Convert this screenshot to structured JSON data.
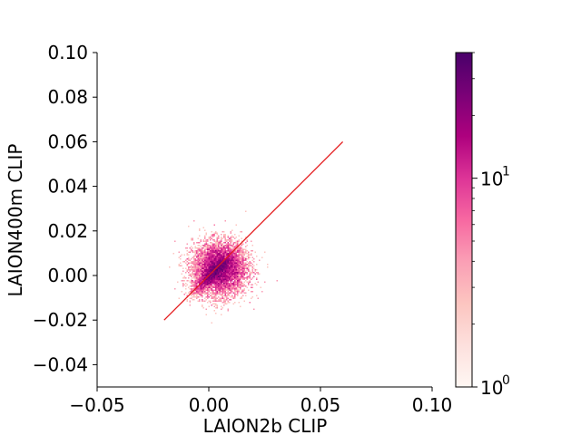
{
  "chart_data": {
    "type": "heatmap",
    "title": "",
    "xlabel": "LAION2b CLIP",
    "ylabel": "LAION400m CLIP",
    "xlim": [
      -0.05,
      0.1
    ],
    "ylim": [
      -0.05,
      0.1
    ],
    "x_ticks": [
      -0.05,
      0.0,
      0.05,
      0.1
    ],
    "x_tick_labels": [
      "−0.05",
      "0.00",
      "0.05",
      "0.10"
    ],
    "y_ticks": [
      -0.04,
      -0.02,
      0.0,
      0.02,
      0.04,
      0.06,
      0.08,
      0.1
    ],
    "y_tick_labels": [
      "−0.04",
      "−0.02",
      "0.00",
      "0.02",
      "0.04",
      "0.06",
      "0.08",
      "0.10"
    ],
    "grid": false,
    "density_cluster": {
      "center": [
        0.005,
        0.003
      ],
      "x_spread": 0.006,
      "y_spread": 0.006,
      "max_count": 40
    },
    "reference_line": {
      "color": "#e41a1c",
      "x": [
        -0.02,
        0.06
      ],
      "y": [
        -0.02,
        0.06
      ]
    },
    "colorbar": {
      "scale": "log",
      "colormap": "RdPu",
      "colors": [
        "#fff7f3",
        "#fde0dd",
        "#fcc5c0",
        "#fa9fb5",
        "#f768a1",
        "#dd3497",
        "#ae017e",
        "#7a0177",
        "#49006a"
      ],
      "range": [
        1,
        40
      ],
      "major_ticks": [
        {
          "value": 1,
          "base": "10",
          "exp": "0"
        },
        {
          "value": 10,
          "base": "10",
          "exp": "1"
        }
      ],
      "minor_ticks": [
        2,
        3,
        4,
        5,
        6,
        7,
        8,
        9,
        20,
        30,
        40
      ]
    }
  }
}
